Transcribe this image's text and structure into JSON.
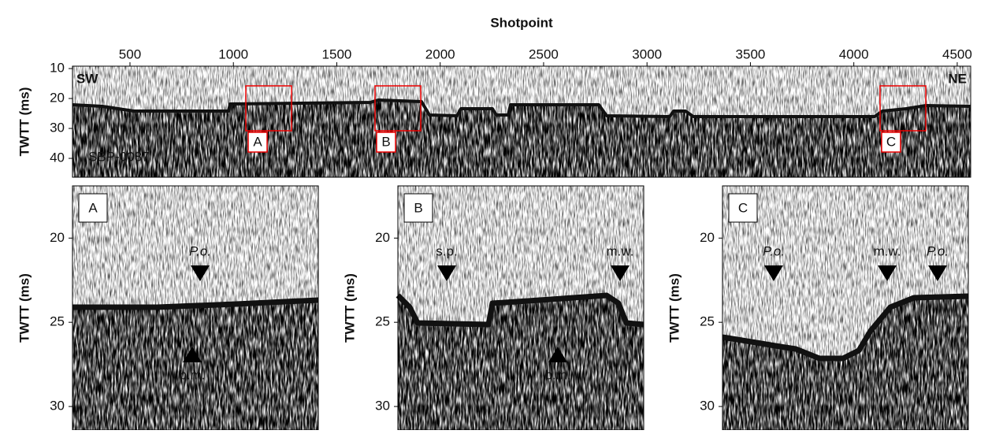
{
  "chart_data": [
    {
      "type": "image",
      "x_label": "Shotpoint",
      "y_label": "TWTT (ms)",
      "xlim": [
        222,
        4565
      ],
      "xticks": [
        500,
        1000,
        1500,
        2000,
        2500,
        3000,
        3500,
        4000,
        4500
      ],
      "ylim": [
        9.2,
        46.3
      ],
      "yticks": [
        10,
        20,
        30,
        40
      ],
      "annotations": [
        "SW",
        "NE",
        "SBP-0087"
      ],
      "inset_labels": [
        "A",
        "B",
        "C"
      ]
    },
    {
      "type": "image",
      "panel_label": "A",
      "y_label": "TWTT (ms)",
      "ylim": [
        16.9,
        31.4
      ],
      "yticks": [
        20,
        25,
        30
      ],
      "annotations": [
        "P.o.",
        "b.m."
      ]
    },
    {
      "type": "image",
      "panel_label": "B",
      "y_label": "TWTT (ms)",
      "ylim": [
        16.9,
        31.4
      ],
      "yticks": [
        20,
        25,
        30
      ],
      "annotations": [
        "s.p.",
        "b.m.",
        "m.w."
      ]
    },
    {
      "type": "image",
      "panel_label": "C",
      "y_label": "TWTT (ms)",
      "ylim": [
        16.9,
        31.4
      ],
      "yticks": [
        20,
        25,
        30
      ],
      "annotations": [
        "P.o.",
        "m.w.",
        "P.o."
      ]
    }
  ]
}
